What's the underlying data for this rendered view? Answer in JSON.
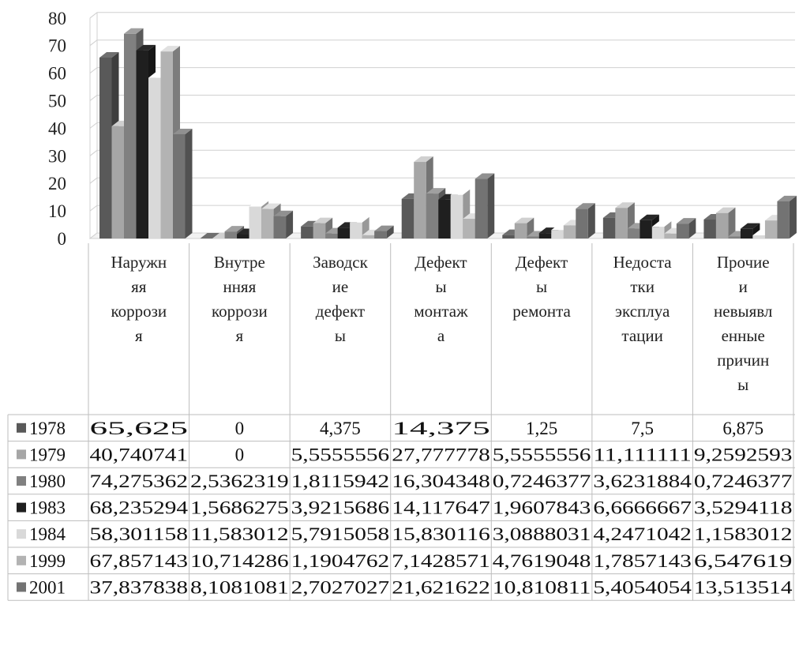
{
  "chart_data": {
    "type": "bar",
    "subtype": "3d-clustered-column-with-data-table",
    "ylim": [
      0,
      80
    ],
    "yticks": [
      "0",
      "10",
      "20",
      "30",
      "40",
      "50",
      "60",
      "70",
      "80"
    ],
    "grid": true,
    "legend": "data-table-left",
    "categories": [
      [
        "Наружн",
        "яя",
        "коррози",
        "я"
      ],
      [
        "Внутре",
        "нняя",
        "коррози",
        "я"
      ],
      [
        "Заводск",
        "ие",
        "дефект",
        "ы"
      ],
      [
        "Дефект",
        "ы",
        "монтаж",
        "а"
      ],
      [
        "Дефект",
        "ы",
        "ремонта"
      ],
      [
        "Недоста",
        "тки",
        "эксплуа",
        "тации"
      ],
      [
        "Прочие",
        "и",
        "невыявл",
        "енные",
        "причин",
        "ы"
      ]
    ],
    "series": [
      {
        "name": "1978",
        "color": "#595959",
        "values": [
          65.625,
          0,
          4.375,
          14.375,
          1.25,
          7.5,
          6.875
        ],
        "labels": [
          "65,625",
          "0",
          "4,375",
          "14,375",
          "1,25",
          "7,5",
          "6,875"
        ]
      },
      {
        "name": "1979",
        "color": "#a6a6a6",
        "values": [
          40.740741,
          0,
          5.5555556,
          27.777778,
          5.5555556,
          11.111111,
          9.2592593
        ],
        "labels": [
          "40,740741",
          "0",
          "5,5555556",
          "27,777778",
          "5,5555556",
          "11,111111",
          "9,2592593"
        ]
      },
      {
        "name": "1980",
        "color": "#808080",
        "values": [
          74.275362,
          2.5362319,
          1.8115942,
          16.304348,
          0.7246377,
          3.6231884,
          0.7246377
        ],
        "labels": [
          "74,275362",
          "2,5362319",
          "1,8115942",
          "16,304348",
          "0,7246377",
          "3,6231884",
          "0,7246377"
        ]
      },
      {
        "name": "1983",
        "color": "#1f1f1f",
        "values": [
          68.235294,
          1.5686275,
          3.9215686,
          14.117647,
          1.9607843,
          6.6666667,
          3.5294118
        ],
        "labels": [
          "68,235294",
          "1,5686275",
          "3,9215686",
          "14,117647",
          "1,9607843",
          "6,6666667",
          "3,5294118"
        ]
      },
      {
        "name": "1984",
        "color": "#d9d9d9",
        "values": [
          58.301158,
          11.583012,
          5.7915058,
          15.830116,
          3.0888031,
          4.2471042,
          1.1583012
        ],
        "labels": [
          "58,301158",
          "11,583012",
          "5,7915058",
          "15,830116",
          "3,0888031",
          "4,2471042",
          "1,1583012"
        ]
      },
      {
        "name": "1999",
        "color": "#b3b3b3",
        "values": [
          67.857143,
          10.714286,
          1.1904762,
          7.1428571,
          4.7619048,
          1.7857143,
          6.547619
        ],
        "labels": [
          "67,857143",
          "10,714286",
          "1,1904762",
          "7,1428571",
          "4,7619048",
          "1,7857143",
          "6,547619"
        ]
      },
      {
        "name": "2001",
        "color": "#737373",
        "values": [
          37.837838,
          8.1081081,
          2.7027027,
          21.621622,
          10.810811,
          5.4054054,
          13.513514
        ],
        "labels": [
          "37,837838",
          "8,1081081",
          "2,7027027",
          "21,621622",
          "10,810811",
          "5,4054054",
          "13,513514"
        ]
      }
    ]
  }
}
